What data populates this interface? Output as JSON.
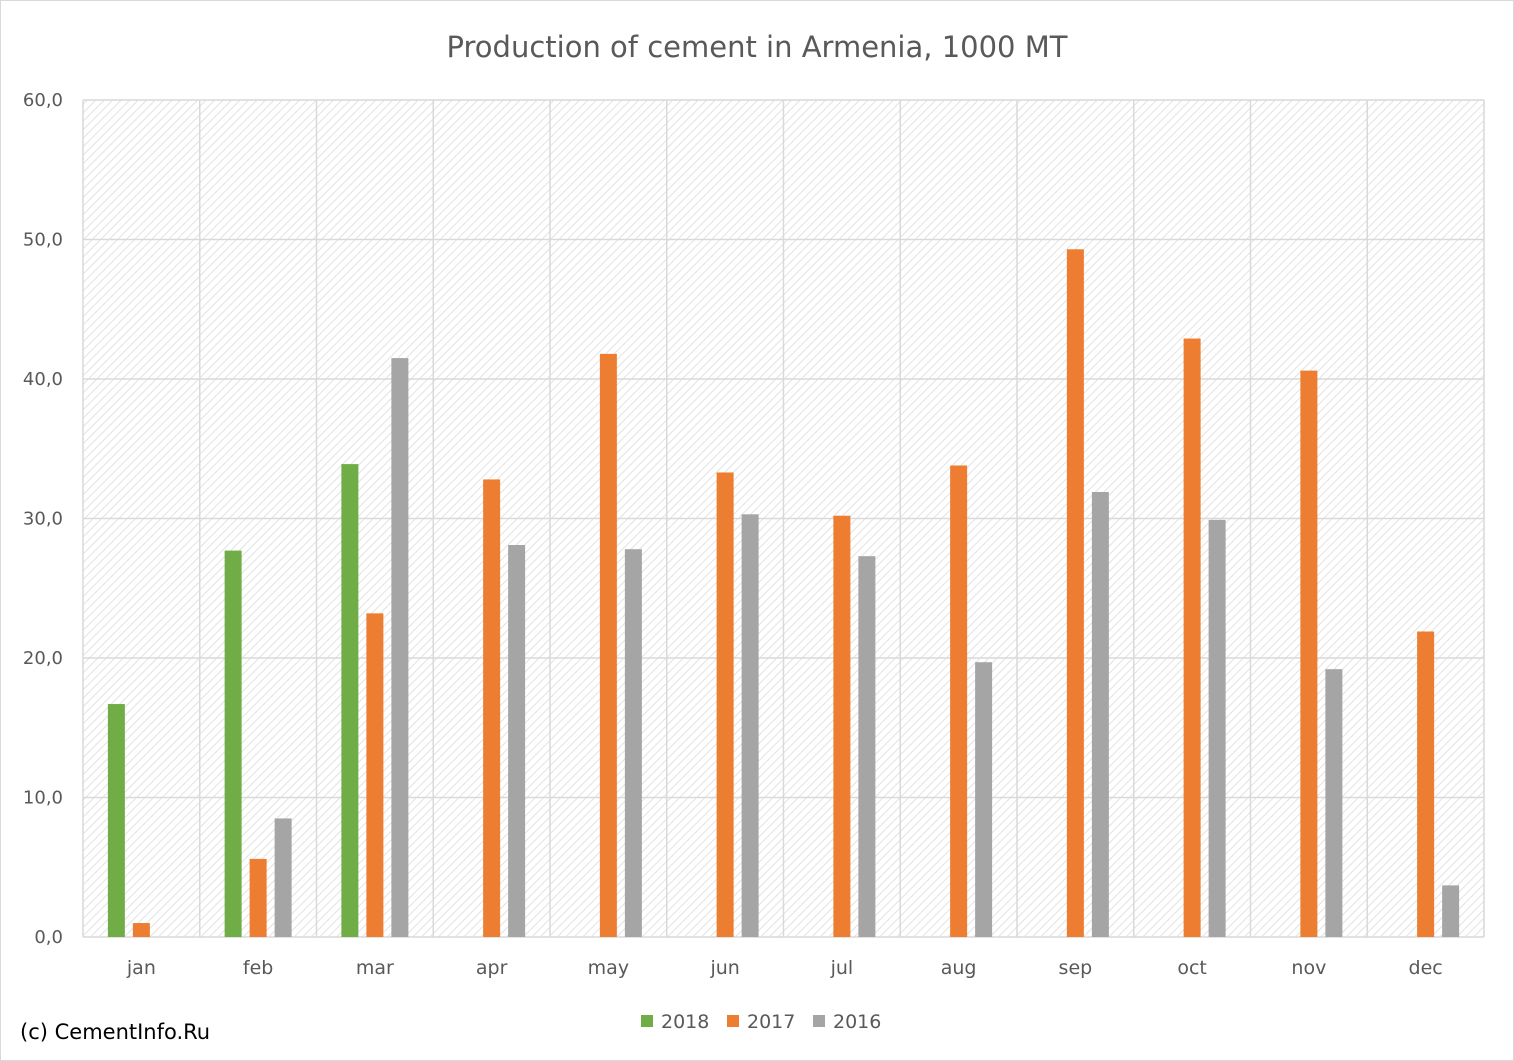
{
  "credit": "(c) CementInfo.Ru",
  "colors": {
    "series_2018": "#70ad47",
    "series_2017": "#ed7d31",
    "series_2016": "#a5a5a5",
    "text": "#595959",
    "grid": "#d9d9d9"
  },
  "chart_data": {
    "type": "bar",
    "title": "Production of cement in Armenia, 1000 MT",
    "xlabel": "",
    "ylabel": "",
    "ylim": [
      0,
      60
    ],
    "yticks": [
      "0,0",
      "10,0",
      "20,0",
      "30,0",
      "40,0",
      "50,0",
      "60,0"
    ],
    "grid": true,
    "legend_position": "bottom",
    "categories": [
      "jan",
      "feb",
      "mar",
      "apr",
      "may",
      "jun",
      "jul",
      "aug",
      "sep",
      "oct",
      "nov",
      "dec"
    ],
    "series": [
      {
        "name": "2018",
        "color": "#70ad47",
        "values": [
          16.7,
          27.7,
          33.9,
          null,
          null,
          null,
          null,
          null,
          null,
          null,
          null,
          null
        ]
      },
      {
        "name": "2017",
        "color": "#ed7d31",
        "values": [
          1.0,
          5.6,
          23.2,
          32.8,
          41.8,
          33.3,
          30.2,
          33.8,
          49.3,
          42.9,
          40.6,
          21.9
        ]
      },
      {
        "name": "2016",
        "color": "#a5a5a5",
        "values": [
          null,
          8.5,
          41.5,
          28.1,
          27.8,
          30.3,
          27.3,
          19.7,
          31.9,
          29.9,
          19.2,
          3.7
        ]
      }
    ]
  }
}
